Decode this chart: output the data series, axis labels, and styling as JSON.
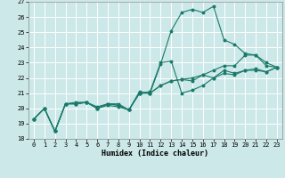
{
  "xlabel": "Humidex (Indice chaleur)",
  "bg_color": "#cce8e8",
  "grid_color": "#ffffff",
  "line_color": "#1a7a6a",
  "xlim": [
    -0.5,
    23.5
  ],
  "ylim": [
    18,
    27
  ],
  "yticks": [
    18,
    19,
    20,
    21,
    22,
    23,
    24,
    25,
    26,
    27
  ],
  "xticks": [
    0,
    1,
    2,
    3,
    4,
    5,
    6,
    7,
    8,
    9,
    10,
    11,
    12,
    13,
    14,
    15,
    16,
    17,
    18,
    19,
    20,
    21,
    22,
    23
  ],
  "series": [
    {
      "x": [
        0,
        1,
        2,
        3,
        4,
        5,
        6,
        7,
        8,
        9,
        10,
        11,
        12,
        13,
        14,
        15,
        16,
        17,
        18,
        19,
        20,
        21,
        22,
        23
      ],
      "y": [
        19.3,
        20.0,
        18.5,
        20.3,
        20.4,
        20.4,
        20.1,
        20.3,
        20.3,
        19.9,
        21.1,
        21.0,
        22.9,
        25.1,
        26.3,
        26.5,
        26.3,
        26.7,
        24.5,
        24.2,
        23.6,
        23.5,
        22.8,
        22.7
      ]
    },
    {
      "x": [
        0,
        1,
        2,
        3,
        4,
        5,
        6,
        7,
        8,
        9,
        10,
        11,
        12,
        13,
        14,
        15,
        16,
        17,
        18,
        19,
        20,
        21,
        22,
        23
      ],
      "y": [
        19.3,
        20.0,
        18.5,
        20.3,
        20.3,
        20.4,
        20.0,
        20.3,
        20.2,
        19.9,
        21.0,
        21.1,
        23.0,
        23.1,
        21.0,
        21.2,
        21.5,
        22.0,
        22.5,
        22.3,
        22.5,
        22.6,
        22.4,
        22.7
      ]
    },
    {
      "x": [
        0,
        1,
        2,
        3,
        4,
        5,
        6,
        7,
        8,
        9,
        10,
        11,
        12,
        13,
        14,
        15,
        16,
        17,
        18,
        19,
        20,
        21,
        22,
        23
      ],
      "y": [
        19.3,
        20.0,
        18.5,
        20.3,
        20.3,
        20.4,
        20.0,
        20.3,
        20.2,
        19.9,
        21.0,
        21.0,
        21.5,
        21.8,
        21.9,
        22.0,
        22.2,
        22.5,
        22.8,
        22.8,
        23.5,
        23.5,
        23.0,
        22.7
      ]
    },
    {
      "x": [
        0,
        1,
        2,
        3,
        4,
        5,
        6,
        7,
        8,
        9,
        10,
        11,
        12,
        13,
        14,
        15,
        16,
        17,
        18,
        19,
        20,
        21,
        22,
        23
      ],
      "y": [
        19.3,
        20.0,
        18.5,
        20.3,
        20.3,
        20.4,
        20.0,
        20.2,
        20.1,
        19.9,
        21.0,
        21.0,
        21.5,
        21.8,
        21.9,
        21.8,
        22.2,
        22.0,
        22.3,
        22.2,
        22.5,
        22.5,
        22.4,
        22.7
      ]
    }
  ]
}
